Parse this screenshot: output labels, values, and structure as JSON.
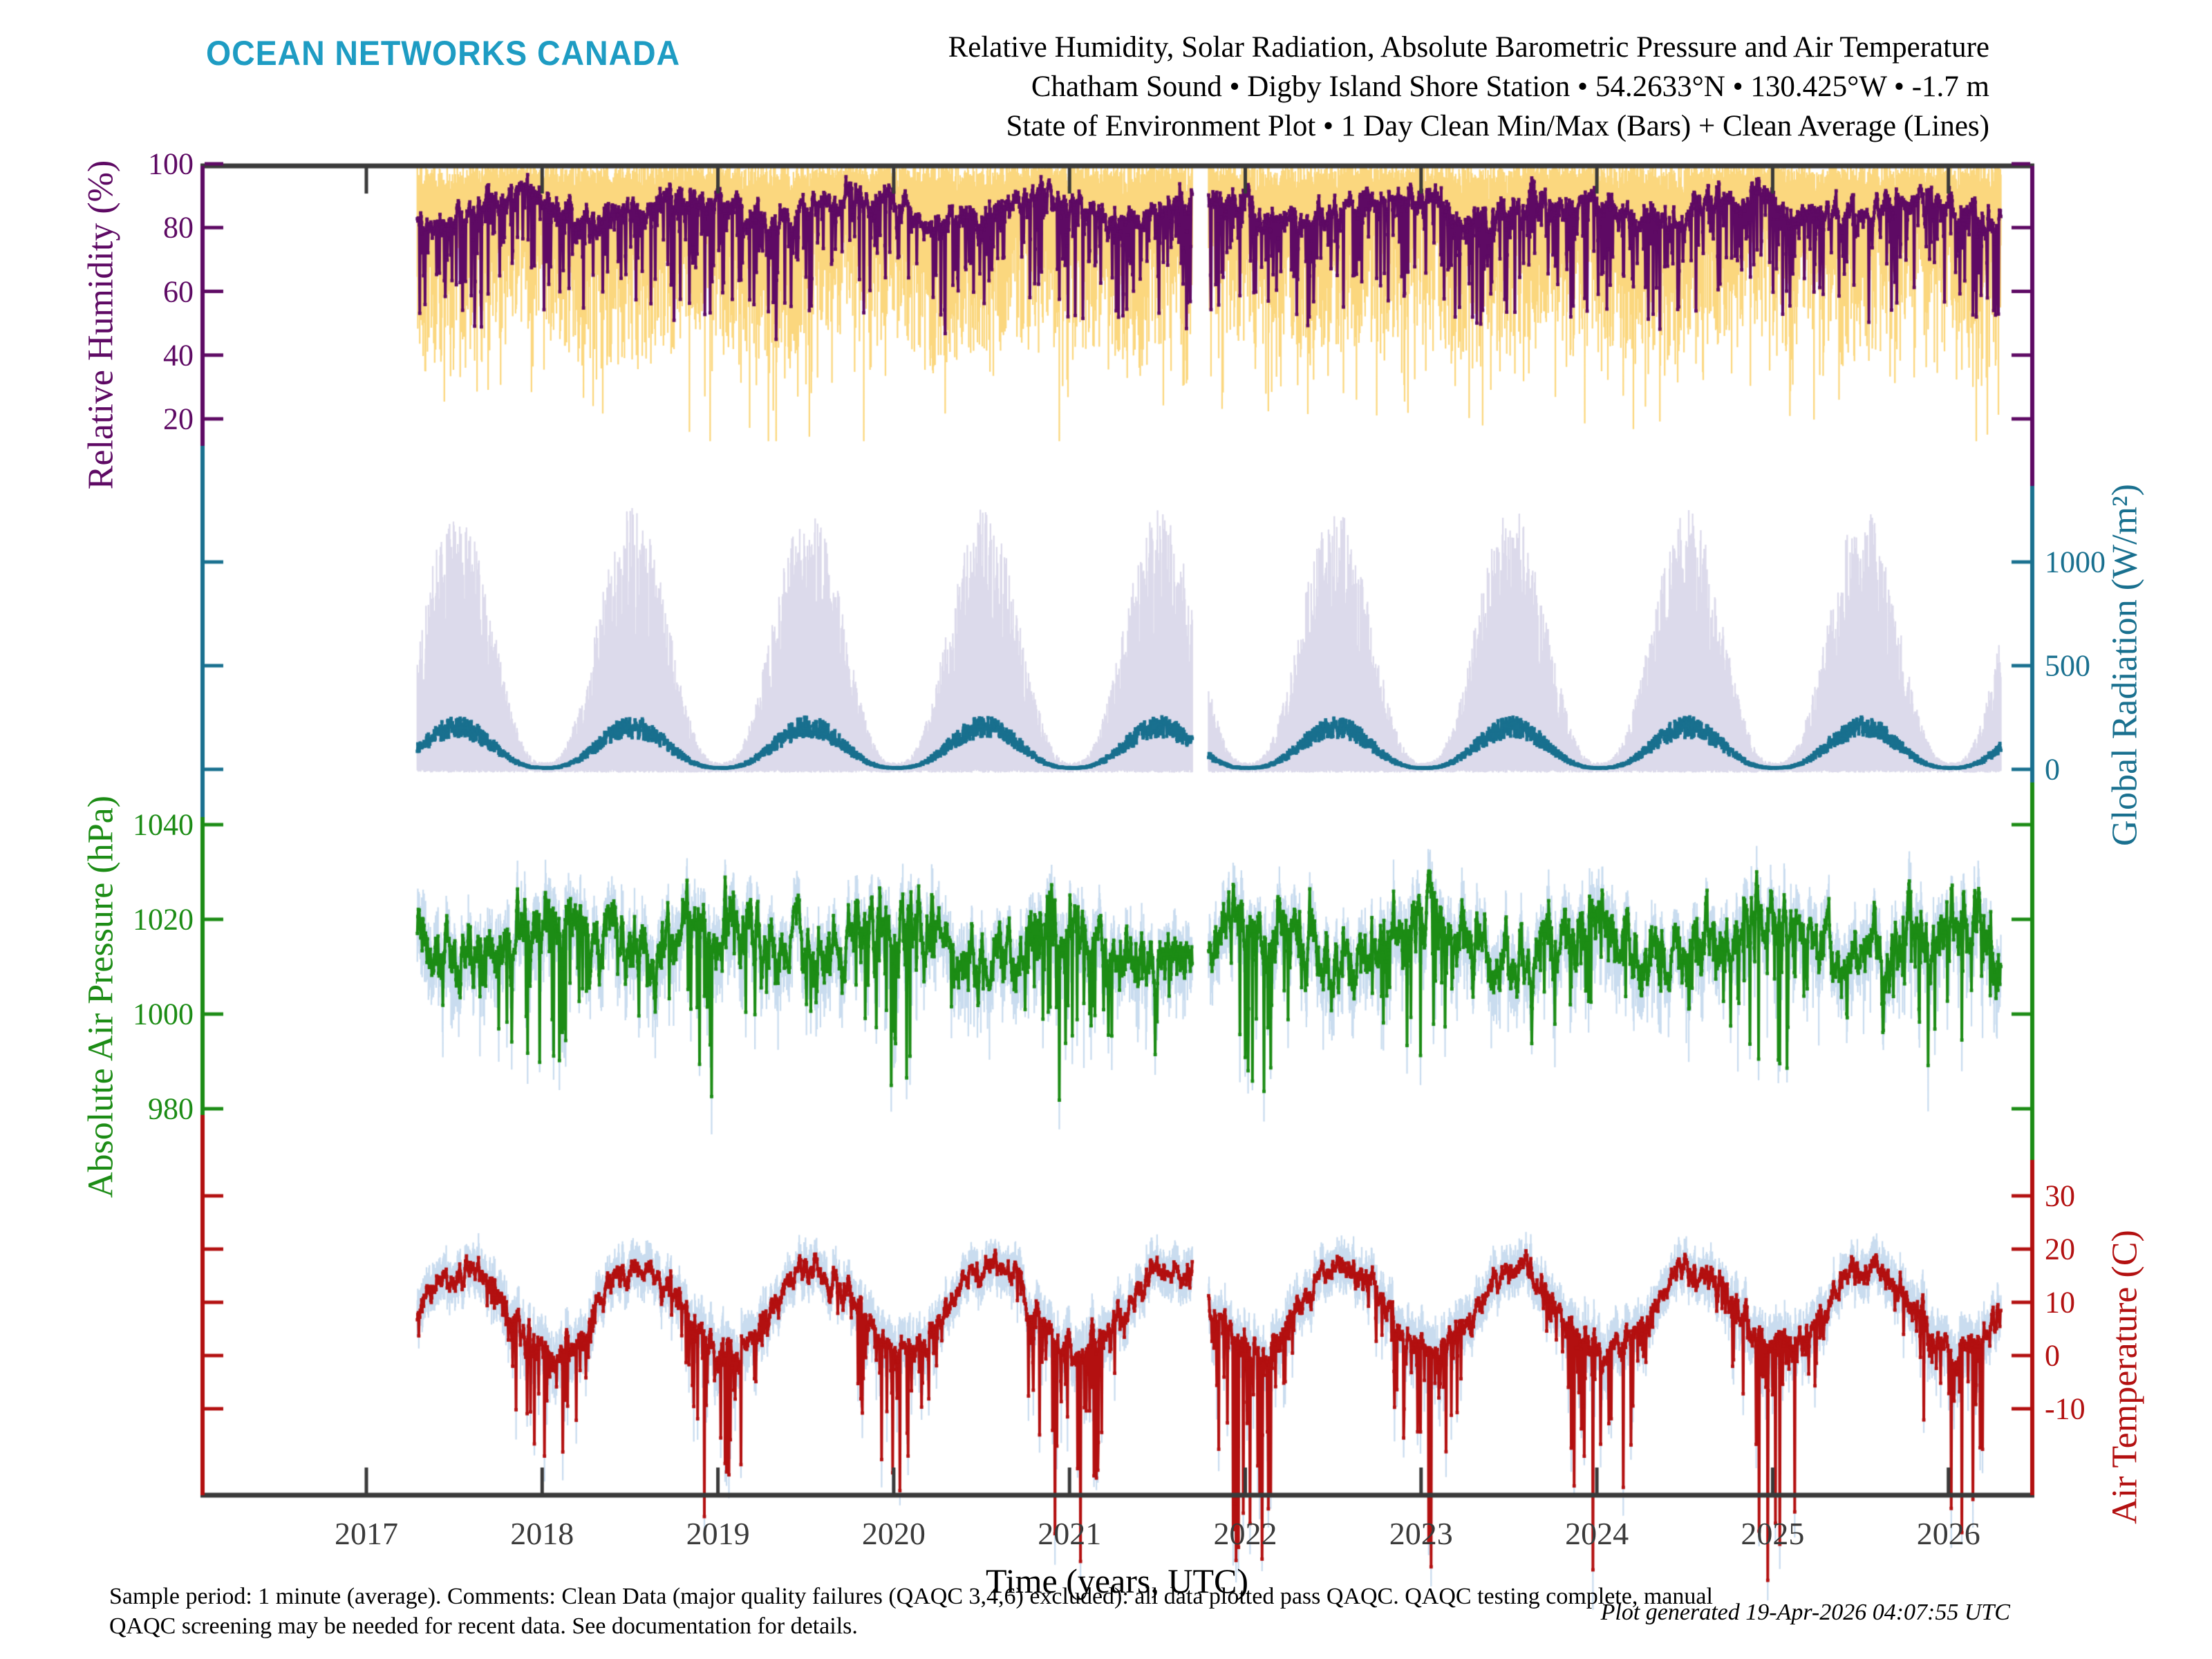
{
  "header": {
    "logo": "OCEAN NETWORKS CANADA",
    "title_line1": "Relative Humidity, Solar Radiation, Absolute Barometric Pressure and Air Temperature",
    "title_line2": "Chatham Sound • Digby Island Shore Station • 54.2633°N • 130.425°W • -1.7 m",
    "title_line3": "State of Environment Plot • 1 Day Clean Min/Max (Bars) + Clean Average (Lines)"
  },
  "footer": {
    "line1": "Sample period: 1 minute (average). Comments: Clean Data (major quality failures (QAQC 3,4,6) excluded): all data plotted pass QAQC. QAQC testing complete, manual",
    "line2": "QAQC screening may be needed for recent data. See documentation for details.",
    "generated": "Plot generated 19-Apr-2026 04:07:55 UTC"
  },
  "chart_data": {
    "type": "minmax_bar_line_multipanel",
    "frame_color": "#3a3a3a",
    "x_axis": {
      "label": "Time (years, UTC)",
      "ticks": [
        2017,
        2018,
        2019,
        2020,
        2021,
        2022,
        2023,
        2024,
        2025,
        2026
      ],
      "tick_labels": [
        "2017",
        "2018",
        "2019",
        "2020",
        "2021",
        "2022",
        "2023",
        "2024",
        "2025",
        "2026"
      ],
      "data_start": 2017.29,
      "data_end": 2026.3,
      "gaps": [
        [
          2021.7,
          2021.79
        ]
      ]
    },
    "panels": [
      {
        "id": "relative-humidity",
        "axis_label": "Relative Humidity (%)",
        "label_side": "left",
        "color": "#5e0a64",
        "bar_color": "#fbd77e",
        "ticks": [
          100,
          80,
          60,
          40,
          20
        ],
        "tick_labels": [
          "100",
          "80",
          "60",
          "40",
          "20"
        ],
        "value_range": [
          0,
          100
        ],
        "units": "%",
        "model": {
          "kind": "humidity",
          "seed": 11,
          "base": 86,
          "season_amp": 3.5,
          "season_phase": 0.83,
          "ar": 0.8,
          "sigma": 3.2,
          "dip_amp": 36,
          "dip_pow": 9,
          "avg_min": 30,
          "avg_max": 97.5,
          "max_frac": 0.5,
          "min_off": 9,
          "min_amp": 36,
          "min_pow": 2.2
        }
      },
      {
        "id": "global-radiation",
        "axis_label": "Global Radiation (W/m²)",
        "label_side": "right",
        "color": "#19708f",
        "bar_color": "#dcdaeb",
        "ticks": [
          1000,
          500,
          0
        ],
        "tick_labels": [
          "1000",
          "500",
          "0"
        ],
        "value_range": [
          -20,
          1320
        ],
        "units": "W/m²",
        "model": {
          "kind": "radiation",
          "seed": 22,
          "peak_phase": 0.515,
          "shape_pow": 1.35,
          "max_base": 35,
          "max_amp": 1230,
          "min_amp": 16,
          "avg_base": 9,
          "avg_amp": 245
        }
      },
      {
        "id": "absolute-air-pressure",
        "axis_label": "Absolute Air Pressure (hPa)",
        "label_side": "left",
        "color": "#1c8c15",
        "bar_color": "#c9dcef",
        "ticks": [
          1040,
          1020,
          1000,
          980
        ],
        "tick_labels": [
          "1040",
          "1020",
          "1000",
          "980"
        ],
        "value_range": [
          975,
          1039
        ],
        "units": "hPa",
        "model": {
          "kind": "pressure",
          "seed": 33,
          "base": 1015.5,
          "season_amp": 3.2,
          "season_phase": 0.02,
          "ar": 0.82,
          "sigma": 5.0,
          "storm_amp": 34,
          "storm_pow": 15,
          "min": 976,
          "max": 1036,
          "bar": 5.5
        }
      },
      {
        "id": "air-temperature",
        "axis_label": "Air Temperature (C)",
        "label_side": "right",
        "color": "#b31010",
        "bar_color": "#c9dcef",
        "ticks": [
          30,
          20,
          10,
          0,
          -10
        ],
        "tick_labels": [
          "30",
          "20",
          "10",
          "0",
          "-10"
        ],
        "value_range": [
          -13,
          25
        ],
        "units": "C",
        "model": {
          "kind": "temperature",
          "seed": 44,
          "base": 8.7,
          "season_amp": 7.9,
          "season_phase": 0.555,
          "ar": 0.8,
          "sigma": 1.9,
          "snap_amp": 15,
          "snap_pow": 12,
          "bar": 3.2
        }
      }
    ]
  }
}
